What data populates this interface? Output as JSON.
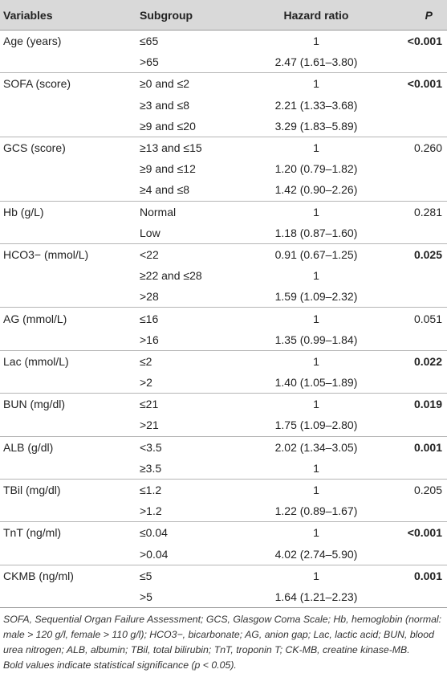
{
  "headers": {
    "variables": "Variables",
    "subgroup": "Subgroup",
    "hazard_ratio": "Hazard ratio",
    "p": "P"
  },
  "rows": [
    {
      "variable": "Age (years)",
      "subgroup": "≤65",
      "hr": "1",
      "p": "<0.001",
      "p_bold": true
    },
    {
      "variable": "",
      "subgroup": ">65",
      "hr": "2.47 (1.61–3.80)",
      "p": ""
    },
    {
      "variable": "SOFA (score)",
      "subgroup": "≥0 and ≤2",
      "hr": "1",
      "p": "<0.001",
      "p_bold": true
    },
    {
      "variable": "",
      "subgroup": "≥3 and ≤8",
      "hr": "2.21 (1.33–3.68)",
      "p": ""
    },
    {
      "variable": "",
      "subgroup": "≥9 and ≤20",
      "hr": "3.29 (1.83–5.89)",
      "p": ""
    },
    {
      "variable": "GCS (score)",
      "subgroup": "≥13 and ≤15",
      "hr": "1",
      "p": "0.260"
    },
    {
      "variable": "",
      "subgroup": "≥9 and ≤12",
      "hr": "1.20 (0.79–1.82)",
      "p": ""
    },
    {
      "variable": "",
      "subgroup": "≥4 and ≤8",
      "hr": "1.42 (0.90–2.26)",
      "p": ""
    },
    {
      "variable": "Hb (g/L)",
      "subgroup": "Normal",
      "hr": "1",
      "p": "0.281"
    },
    {
      "variable": "",
      "subgroup": "Low",
      "hr": "1.18 (0.87–1.60)",
      "p": ""
    },
    {
      "variable": "HCO3− (mmol/L)",
      "subgroup": "<22",
      "hr": "0.91 (0.67–1.25)",
      "p": "0.025",
      "p_bold": true
    },
    {
      "variable": "",
      "subgroup": "≥22 and ≤28",
      "hr": "1",
      "p": ""
    },
    {
      "variable": "",
      "subgroup": ">28",
      "hr": "1.59 (1.09–2.32)",
      "p": ""
    },
    {
      "variable": "AG (mmol/L)",
      "subgroup": "≤16",
      "hr": "1",
      "p": "0.051"
    },
    {
      "variable": "",
      "subgroup": ">16",
      "hr": "1.35 (0.99–1.84)",
      "p": ""
    },
    {
      "variable": "Lac (mmol/L)",
      "subgroup": "≤2",
      "hr": "1",
      "p": "0.022",
      "p_bold": true
    },
    {
      "variable": "",
      "subgroup": ">2",
      "hr": "1.40 (1.05–1.89)",
      "p": ""
    },
    {
      "variable": "BUN (mg/dl)",
      "subgroup": "≤21",
      "hr": "1",
      "p": "0.019",
      "p_bold": true
    },
    {
      "variable": "",
      "subgroup": ">21",
      "hr": "1.75 (1.09–2.80)",
      "p": ""
    },
    {
      "variable": "ALB (g/dl)",
      "subgroup": "<3.5",
      "hr": "2.02 (1.34–3.05)",
      "p": "0.001",
      "p_bold": true
    },
    {
      "variable": "",
      "subgroup": "≥3.5",
      "hr": "1",
      "p": ""
    },
    {
      "variable": "TBil (mg/dl)",
      "subgroup": "≤1.2",
      "hr": "1",
      "p": "0.205"
    },
    {
      "variable": "",
      "subgroup": ">1.2",
      "hr": "1.22 (0.89–1.67)",
      "p": ""
    },
    {
      "variable": "TnT (ng/ml)",
      "subgroup": "≤0.04",
      "hr": "1",
      "p": "<0.001",
      "p_bold": true
    },
    {
      "variable": "",
      "subgroup": ">0.04",
      "hr": "4.02 (2.74–5.90)",
      "p": ""
    },
    {
      "variable": "CKMB (ng/ml)",
      "subgroup": "≤5",
      "hr": "1",
      "p": "0.001",
      "p_bold": true
    },
    {
      "variable": "",
      "subgroup": ">5",
      "hr": "1.64 (1.21–2.23)",
      "p": ""
    }
  ],
  "footnote": {
    "abbreviations": "SOFA, Sequential Organ Failure Assessment; GCS, Glasgow Coma Scale; Hb, hemoglobin (normal: male > 120 g/l, female > 110 g/l); HCO3−, bicarbonate; AG, anion gap; Lac, lactic acid; BUN, blood urea nitrogen; ALB, albumin; TBil, total bilirubin; TnT, troponin T; CK-MB, creatine kinase-MB.",
    "significance": "Bold values indicate statistical significance (p < 0.05)."
  }
}
